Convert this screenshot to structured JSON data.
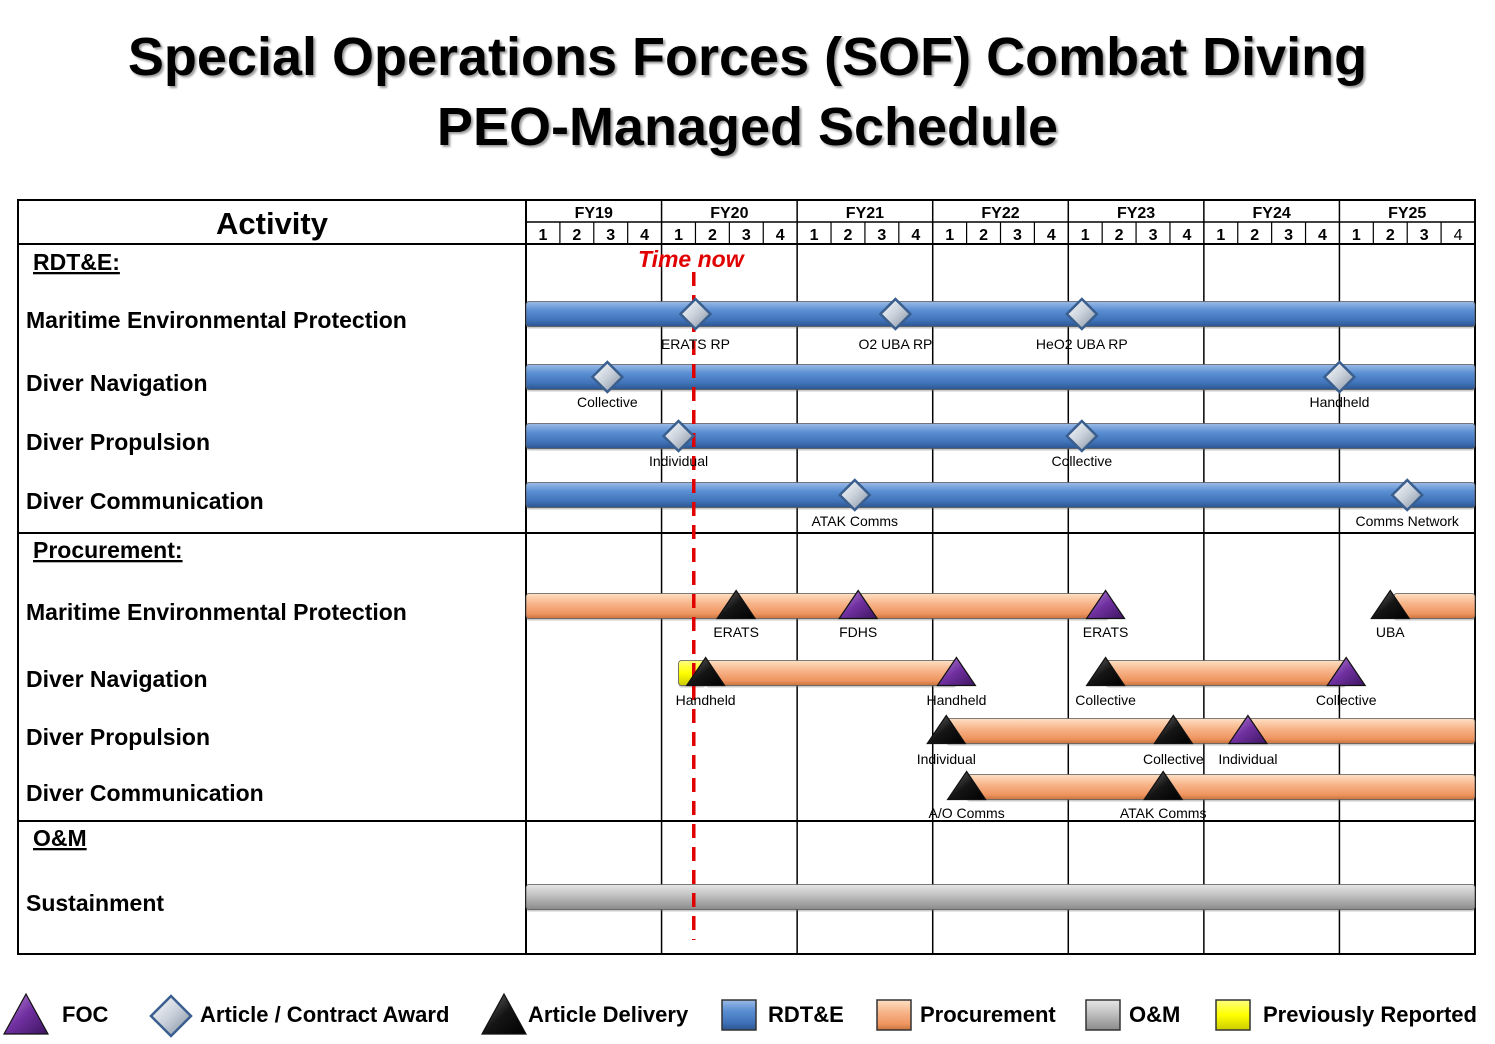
{
  "title": {
    "line1": "Special Operations Forces (SOF) Combat Diving",
    "line2": "PEO-Managed Schedule"
  },
  "chart_data": {
    "type": "gantt",
    "activity_header": "Activity",
    "fiscal_years": [
      "FY19",
      "FY20",
      "FY21",
      "FY22",
      "FY23",
      "FY24",
      "FY25"
    ],
    "quarters": [
      "1",
      "2",
      "3",
      "4"
    ],
    "time_now": {
      "label": "Time now",
      "quarter_index": 4.95
    },
    "sections": [
      {
        "label": "RDT&E:",
        "rows": [
          {
            "label": "Maritime Environmental Protection",
            "bar_kind": "rdte",
            "bars": [
              [
                0,
                28
              ]
            ],
            "milestones": [
              {
                "kind": "award",
                "q": 5.0,
                "label": "ERATS RP"
              },
              {
                "kind": "award",
                "q": 10.9,
                "label": "O2 UBA RP"
              },
              {
                "kind": "award",
                "q": 16.4,
                "label": "HeO2 UBA RP"
              }
            ]
          },
          {
            "label": "Diver Navigation",
            "bar_kind": "rdte",
            "bars": [
              [
                0,
                28
              ]
            ],
            "milestones": [
              {
                "kind": "award",
                "q": 2.4,
                "label": "Collective"
              },
              {
                "kind": "award",
                "q": 24.0,
                "label": "Handheld"
              }
            ]
          },
          {
            "label": "Diver Propulsion",
            "bar_kind": "rdte",
            "bars": [
              [
                0,
                28
              ]
            ],
            "milestones": [
              {
                "kind": "award",
                "q": 4.5,
                "label": "Individual"
              },
              {
                "kind": "award",
                "q": 16.4,
                "label": "Collective"
              }
            ]
          },
          {
            "label": "Diver Communication",
            "bar_kind": "rdte",
            "bars": [
              [
                0,
                28
              ]
            ],
            "milestones": [
              {
                "kind": "award",
                "q": 9.7,
                "label": "ATAK Comms"
              },
              {
                "kind": "award",
                "q": 26.0,
                "label": "Comms Network"
              }
            ]
          }
        ]
      },
      {
        "label": "Procurement:",
        "rows": [
          {
            "label": "Maritime Environmental Protection",
            "bar_kind": "proc",
            "bars": [
              [
                0,
                17.2
              ],
              [
                25.6,
                28
              ]
            ],
            "milestones": [
              {
                "kind": "delivery",
                "q": 6.2,
                "label": "ERATS"
              },
              {
                "kind": "foc",
                "q": 9.8,
                "label": "FDHS"
              },
              {
                "kind": "foc",
                "q": 17.1,
                "label": "ERATS"
              },
              {
                "kind": "delivery",
                "q": 25.5,
                "label": "UBA"
              }
            ]
          },
          {
            "label": "Diver Navigation",
            "bar_kind": "proc",
            "bars": [
              [
                5.3,
                12.7
              ],
              [
                17.1,
                24.2
              ]
            ],
            "prev_reported": [
              [
                4.5,
                5.3
              ]
            ],
            "milestones": [
              {
                "kind": "delivery",
                "q": 5.3,
                "label": "Handheld"
              },
              {
                "kind": "foc",
                "q": 12.7,
                "label": "Handheld"
              },
              {
                "kind": "delivery",
                "q": 17.1,
                "label": "Collective"
              },
              {
                "kind": "foc",
                "q": 24.2,
                "label": "Collective"
              }
            ]
          },
          {
            "label": "Diver Propulsion",
            "bar_kind": "proc",
            "bars": [
              [
                12.4,
                28
              ]
            ],
            "milestones": [
              {
                "kind": "delivery",
                "q": 12.4,
                "label": "Individual"
              },
              {
                "kind": "delivery",
                "q": 19.1,
                "label": "Collective"
              },
              {
                "kind": "foc",
                "q": 21.3,
                "label": "Individual"
              }
            ]
          },
          {
            "label": "Diver Communication",
            "bar_kind": "proc",
            "bars": [
              [
                13.0,
                28
              ]
            ],
            "milestones": [
              {
                "kind": "delivery",
                "q": 13.0,
                "label": "A/O Comms"
              },
              {
                "kind": "delivery",
                "q": 18.8,
                "label": "ATAK Comms"
              }
            ]
          }
        ]
      },
      {
        "label": "O&M",
        "rows": [
          {
            "label": "Sustainment",
            "bar_kind": "om",
            "bars": [
              [
                0,
                28
              ]
            ],
            "milestones": []
          }
        ]
      }
    ],
    "legend": [
      {
        "kind": "foc",
        "label": "FOC"
      },
      {
        "kind": "award",
        "label": "Article / Contract Award"
      },
      {
        "kind": "delivery",
        "label": "Article Delivery"
      },
      {
        "kind": "rdte",
        "label": "RDT&E"
      },
      {
        "kind": "proc",
        "label": "Procurement"
      },
      {
        "kind": "om",
        "label": "O&M"
      },
      {
        "kind": "prev",
        "label": "Previously Reported"
      }
    ],
    "colors": {
      "rdte": "#4f81bd",
      "proc": "#f4a460",
      "om": "#b0b0b0",
      "prev": "#ffff00",
      "foc": "#7030a0",
      "award": "#dde3ea",
      "delivery": "#000000",
      "time_now": "#e00000"
    }
  }
}
